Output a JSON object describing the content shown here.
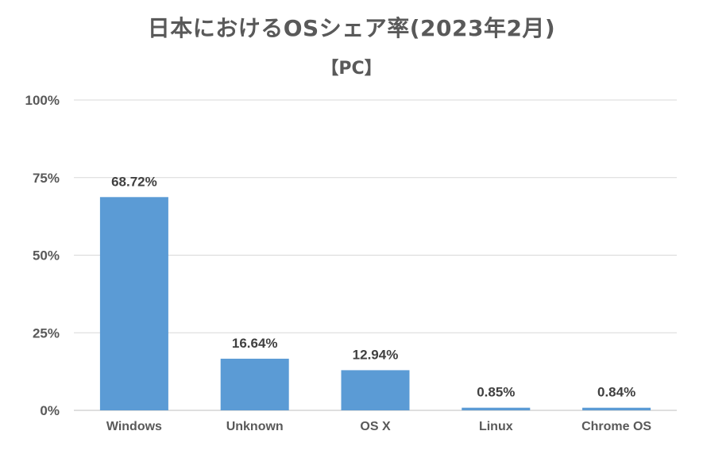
{
  "chart_data": {
    "type": "bar",
    "title": "日本におけるOSシェア率(2023年2月)",
    "subtitle": "【PC】",
    "categories": [
      "Windows",
      "Unknown",
      "OS X",
      "Linux",
      "Chrome OS"
    ],
    "values": [
      68.72,
      16.64,
      12.94,
      0.85,
      0.84
    ],
    "data_labels": [
      "68.72%",
      "16.64%",
      "12.94%",
      "0.85%",
      "0.84%"
    ],
    "ylim": [
      0,
      100
    ],
    "yticks": [
      0,
      25,
      50,
      75,
      100
    ],
    "ytick_labels": [
      "0%",
      "25%",
      "50%",
      "75%",
      "100%"
    ],
    "grid": true,
    "bar_color": "#5b9bd5",
    "grid_color": "#d9d9d9"
  }
}
